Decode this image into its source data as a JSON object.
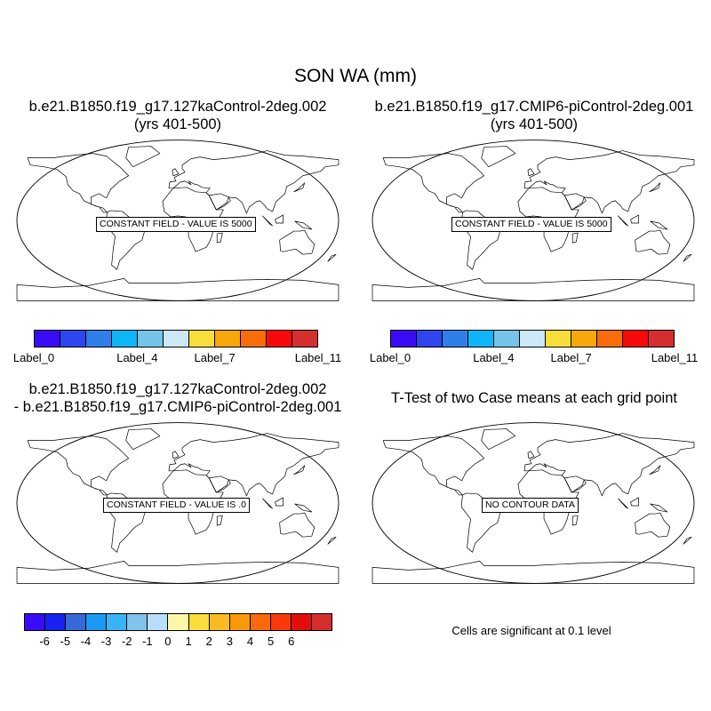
{
  "main_title": "SON WA (mm)",
  "panels": [
    {
      "title_line1": "b.e21.B1850.f19_g17.127kaControl-2deg.002",
      "title_line2": "(yrs 401-500)",
      "annotation": "CONSTANT FIELD - VALUE IS 5000"
    },
    {
      "title_line1": "b.e21.B1850.f19_g17.CMIP6-piControl-2deg.001",
      "title_line2": "(yrs 401-500)",
      "annotation": "CONSTANT FIELD - VALUE IS 5000"
    },
    {
      "title_line1": "b.e21.B1850.f19_g17.127kaControl-2deg.002",
      "title_line2": "- b.e21.B1850.f19_g17.CMIP6-piControl-2deg.001",
      "annotation": "CONSTANT FIELD - VALUE IS .0"
    },
    {
      "title_line1": "T-Test of two Case means at each grid point",
      "title_line2": "",
      "annotation": "NO CONTOUR DATA"
    }
  ],
  "colorbar_top": {
    "colors": [
      "#3a0cf6",
      "#2f45ee",
      "#2f7ee9",
      "#0fb6f7",
      "#74c4ea",
      "#cde8f5",
      "#f8de3a",
      "#f8a70a",
      "#f86c0a",
      "#f70a0a",
      "#d42e2e"
    ],
    "labels": [
      "Label_0",
      "Label_4",
      "Label_7",
      "Label_11"
    ]
  },
  "colorbar_diff": {
    "colors": [
      "#3a0cf6",
      "#1a22f2",
      "#3969d9",
      "#1a9af3",
      "#38b4f5",
      "#7fc4ea",
      "#b8defa",
      "#fcf7a6",
      "#f8de3a",
      "#f8bc22",
      "#f89a0a",
      "#f86a0a",
      "#f83a0a",
      "#e30d0d",
      "#d42e2e"
    ],
    "labels": [
      "-6",
      "-5",
      "-4",
      "-3",
      "-2",
      "-1",
      "0",
      "1",
      "2",
      "3",
      "4",
      "5",
      "6"
    ]
  },
  "significance_note": "Cells are significant at 0.1 level"
}
